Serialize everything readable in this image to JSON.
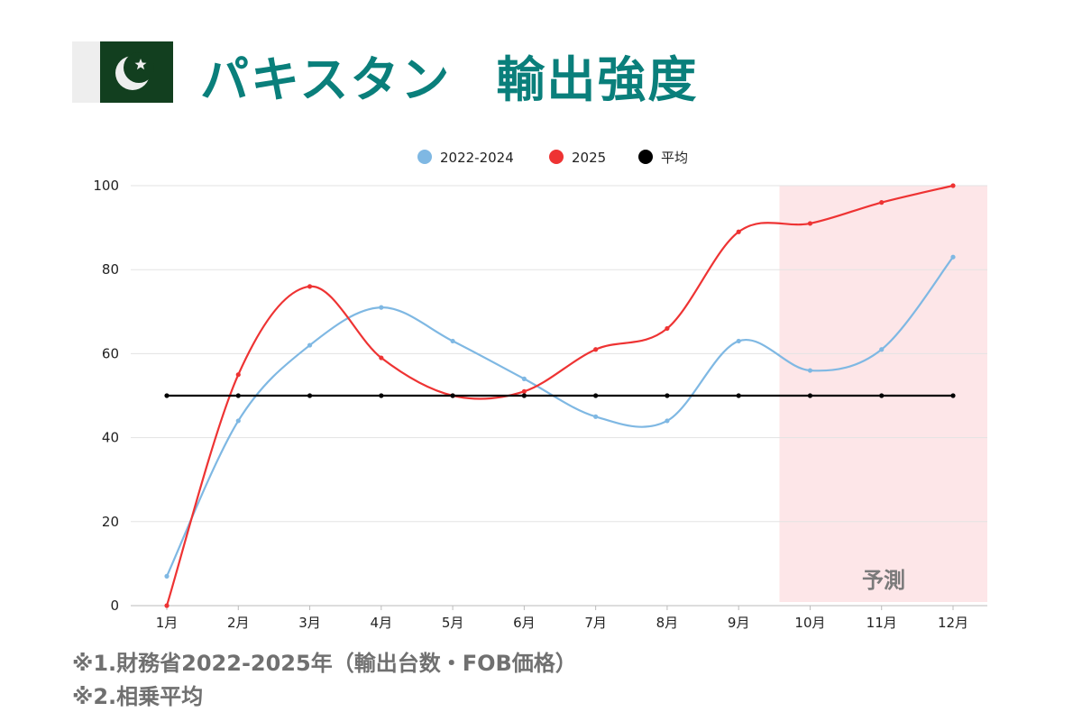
{
  "header": {
    "title_country": "パキスタン",
    "title_metric": "輸出強度",
    "flag": "pakistan-flag"
  },
  "notes": [
    "※1.財務省2022-2025年（輸出台数・FOB価格）",
    "※2.相乗平均"
  ],
  "chart_data": {
    "type": "line",
    "categories": [
      "1月",
      "2月",
      "3月",
      "4月",
      "5月",
      "6月",
      "7月",
      "8月",
      "9月",
      "10月",
      "11月",
      "12月"
    ],
    "series": [
      {
        "name": "2022-2024",
        "color": "#7fb8e3",
        "values": [
          7,
          44,
          62,
          71,
          63,
          54,
          45,
          44,
          63,
          56,
          61,
          83
        ]
      },
      {
        "name": "2025",
        "color": "#ee3333",
        "values": [
          0,
          55,
          76,
          59,
          50,
          51,
          61,
          66,
          89,
          91,
          96,
          100
        ]
      },
      {
        "name": "平均",
        "color": "#000000",
        "values": [
          50,
          50,
          50,
          50,
          50,
          50,
          50,
          50,
          50,
          50,
          50,
          50
        ]
      }
    ],
    "ylim": [
      0,
      100
    ],
    "yticks": [
      0,
      20,
      40,
      60,
      80,
      100
    ],
    "grid": true,
    "legend": "top-center",
    "forecast": {
      "label": "予測",
      "from": "10月",
      "to": "12月",
      "color": "#fde6e8"
    }
  }
}
